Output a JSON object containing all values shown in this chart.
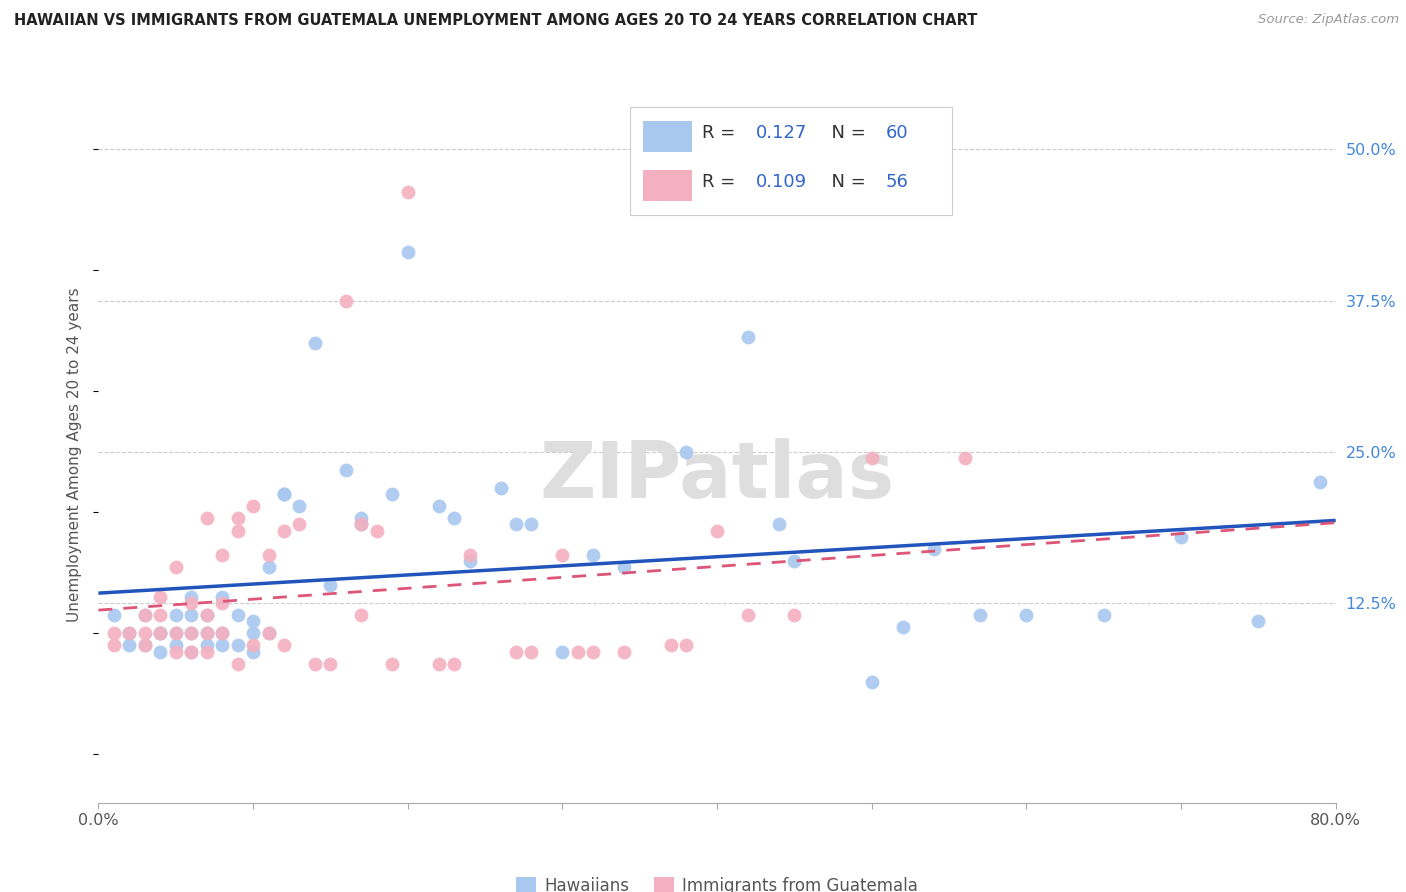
{
  "title": "HAWAIIAN VS IMMIGRANTS FROM GUATEMALA UNEMPLOYMENT AMONG AGES 20 TO 24 YEARS CORRELATION CHART",
  "source": "Source: ZipAtlas.com",
  "ylabel": "Unemployment Among Ages 20 to 24 years",
  "legend_label1": "Hawaiians",
  "legend_label2": "Immigrants from Guatemala",
  "R1": 0.127,
  "N1": 60,
  "R2": 0.109,
  "N2": 56,
  "color1": "#a8c8f0",
  "color2": "#f4b0c0",
  "line_color1": "#2255bb",
  "line_color2": "#dd5577",
  "watermark_text": "ZIPatlas",
  "xmin": 0.0,
  "xmax": 0.8,
  "ymin": -0.04,
  "ymax": 0.535,
  "yticks": [
    0.125,
    0.25,
    0.375,
    0.5
  ],
  "ytick_labels": [
    "12.5%",
    "25.0%",
    "37.5%",
    "50.0%"
  ],
  "xtick_labels_show": [
    "0.0%",
    "80.0%"
  ],
  "hawaiians_x": [
    0.01,
    0.02,
    0.02,
    0.03,
    0.03,
    0.04,
    0.04,
    0.04,
    0.05,
    0.05,
    0.05,
    0.06,
    0.06,
    0.06,
    0.06,
    0.07,
    0.07,
    0.07,
    0.08,
    0.08,
    0.08,
    0.09,
    0.09,
    0.1,
    0.1,
    0.1,
    0.11,
    0.11,
    0.12,
    0.12,
    0.13,
    0.14,
    0.15,
    0.16,
    0.17,
    0.17,
    0.19,
    0.2,
    0.22,
    0.23,
    0.24,
    0.26,
    0.27,
    0.28,
    0.3,
    0.32,
    0.34,
    0.38,
    0.42,
    0.44,
    0.45,
    0.5,
    0.52,
    0.54,
    0.57,
    0.6,
    0.65,
    0.7,
    0.75,
    0.79
  ],
  "hawaiians_y": [
    0.115,
    0.1,
    0.09,
    0.09,
    0.115,
    0.1,
    0.1,
    0.085,
    0.115,
    0.1,
    0.09,
    0.085,
    0.1,
    0.115,
    0.13,
    0.09,
    0.1,
    0.115,
    0.09,
    0.1,
    0.13,
    0.09,
    0.115,
    0.1,
    0.11,
    0.085,
    0.155,
    0.1,
    0.215,
    0.215,
    0.205,
    0.34,
    0.14,
    0.235,
    0.19,
    0.195,
    0.215,
    0.415,
    0.205,
    0.195,
    0.16,
    0.22,
    0.19,
    0.19,
    0.085,
    0.165,
    0.155,
    0.25,
    0.345,
    0.19,
    0.16,
    0.06,
    0.105,
    0.17,
    0.115,
    0.115,
    0.115,
    0.18,
    0.11,
    0.225
  ],
  "guatemala_x": [
    0.01,
    0.01,
    0.02,
    0.03,
    0.03,
    0.03,
    0.04,
    0.04,
    0.04,
    0.05,
    0.05,
    0.05,
    0.06,
    0.06,
    0.06,
    0.07,
    0.07,
    0.07,
    0.07,
    0.08,
    0.08,
    0.08,
    0.09,
    0.09,
    0.09,
    0.1,
    0.1,
    0.11,
    0.11,
    0.12,
    0.12,
    0.13,
    0.14,
    0.15,
    0.16,
    0.17,
    0.17,
    0.18,
    0.19,
    0.2,
    0.22,
    0.23,
    0.24,
    0.27,
    0.28,
    0.3,
    0.31,
    0.32,
    0.34,
    0.37,
    0.38,
    0.4,
    0.42,
    0.45,
    0.5,
    0.56
  ],
  "guatemala_y": [
    0.1,
    0.09,
    0.1,
    0.1,
    0.09,
    0.115,
    0.1,
    0.13,
    0.115,
    0.1,
    0.085,
    0.155,
    0.1,
    0.085,
    0.125,
    0.115,
    0.1,
    0.085,
    0.195,
    0.1,
    0.165,
    0.125,
    0.185,
    0.195,
    0.075,
    0.205,
    0.09,
    0.165,
    0.1,
    0.09,
    0.185,
    0.19,
    0.075,
    0.075,
    0.375,
    0.19,
    0.115,
    0.185,
    0.075,
    0.465,
    0.075,
    0.075,
    0.165,
    0.085,
    0.085,
    0.165,
    0.085,
    0.085,
    0.085,
    0.09,
    0.09,
    0.185,
    0.115,
    0.115,
    0.245,
    0.245
  ]
}
